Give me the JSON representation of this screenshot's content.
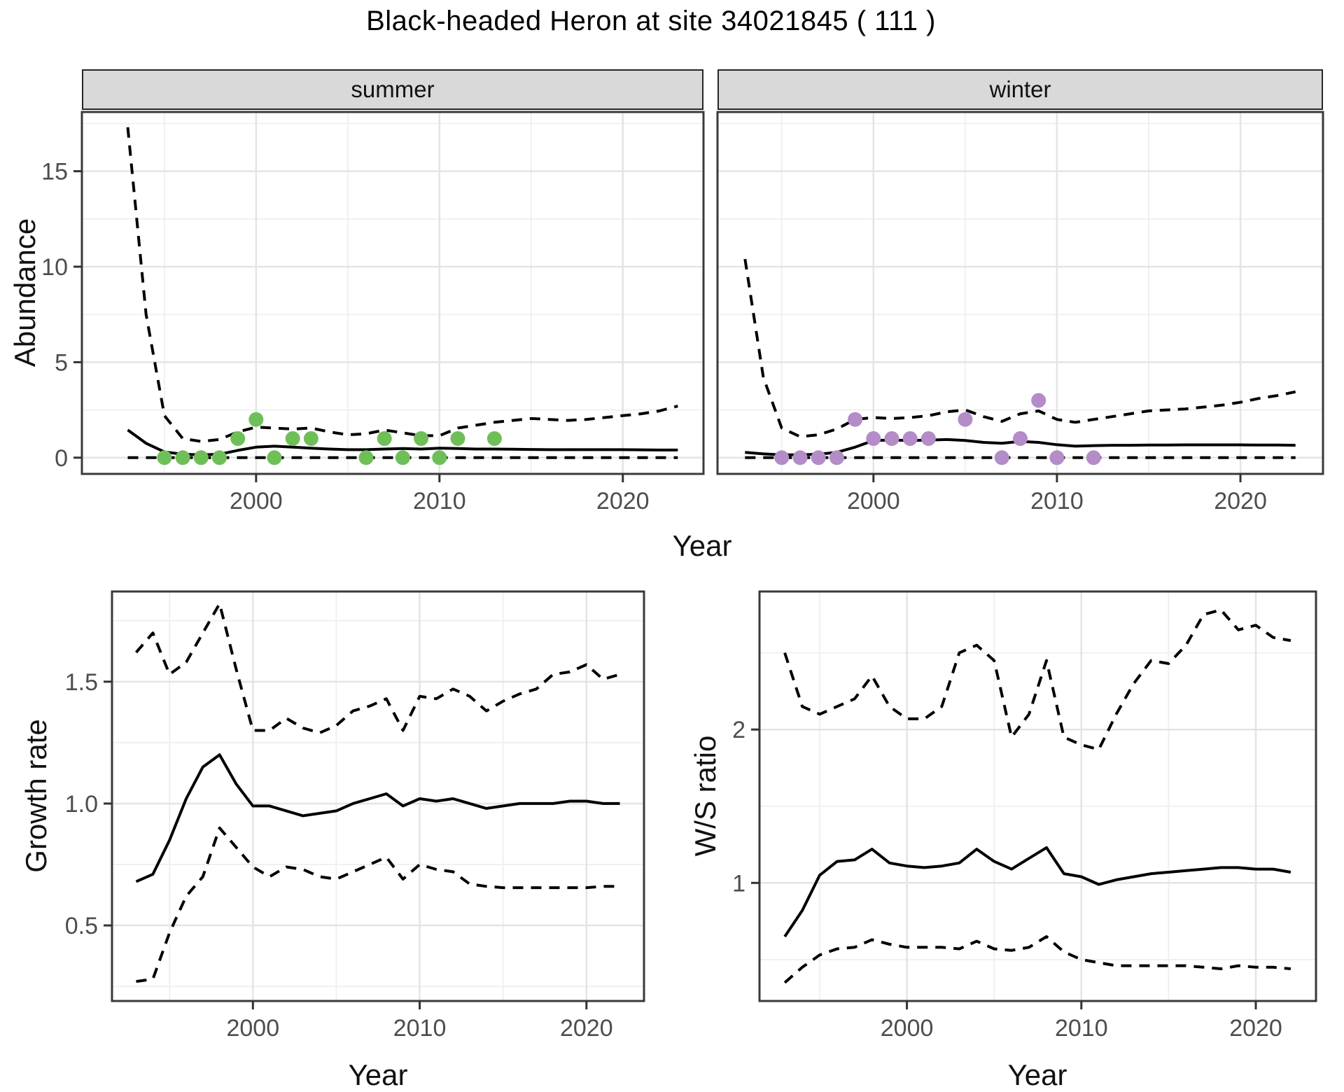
{
  "title": "Black-headed Heron at site 34021845 ( 111 )",
  "facets": {
    "summer": "summer",
    "winter": "winter"
  },
  "axis_titles": {
    "abundance": "Abundance",
    "growth": "Growth rate",
    "ws": "W/S ratio",
    "year": "Year"
  },
  "colors": {
    "summer_point": "#6FBF58",
    "winter_point": "#B48CC8",
    "line": "#000000",
    "grid_major": "#e4e4e4",
    "grid_minor": "#f0f0f0",
    "panel_border": "#3a3a3a",
    "tick_text": "#4d4d4d",
    "tick_mark": "#333333",
    "strip_bg": "#d9d9d9"
  },
  "chart_data": [
    {
      "id": "abundance-summer",
      "type": "line",
      "facet": "summer",
      "ylabel": "Abundance",
      "xlabel": "Year",
      "xlim": [
        1990.5,
        2024.4
      ],
      "ylim": [
        -0.85,
        18.1
      ],
      "xticks": [
        2000,
        2010,
        2020
      ],
      "xtick_labels": [
        "2000",
        "2010",
        "2020"
      ],
      "xminor": [
        1995,
        2005,
        2015
      ],
      "yticks": [
        0,
        5,
        10,
        15
      ],
      "ytick_labels": [
        "0",
        "5",
        "10",
        "15"
      ],
      "yminor": [
        2.5,
        7.5,
        12.5,
        17.5
      ],
      "x": [
        1993,
        1994,
        1995,
        1996,
        1997,
        1998,
        1999,
        2000,
        2001,
        2002,
        2003,
        2004,
        2005,
        2006,
        2007,
        2008,
        2009,
        2010,
        2011,
        2012,
        2013,
        2014,
        2015,
        2016,
        2017,
        2018,
        2019,
        2020,
        2021,
        2022,
        2023
      ],
      "series": [
        {
          "name": "median",
          "style": "solid",
          "values": [
            1.45,
            0.75,
            0.3,
            0.18,
            0.15,
            0.18,
            0.38,
            0.55,
            0.6,
            0.55,
            0.5,
            0.45,
            0.42,
            0.42,
            0.45,
            0.48,
            0.45,
            0.5,
            0.48,
            0.45,
            0.45,
            0.44,
            0.43,
            0.42,
            0.42,
            0.42,
            0.42,
            0.42,
            0.41,
            0.4,
            0.4
          ]
        },
        {
          "name": "upper_ci",
          "style": "dashed",
          "values": [
            17.3,
            7.5,
            2.2,
            1.0,
            0.85,
            0.95,
            1.35,
            1.6,
            1.55,
            1.5,
            1.55,
            1.35,
            1.2,
            1.25,
            1.45,
            1.3,
            1.15,
            1.15,
            1.55,
            1.7,
            1.85,
            1.95,
            2.05,
            2.0,
            1.95,
            2.0,
            2.1,
            2.2,
            2.3,
            2.45,
            2.7
          ]
        },
        {
          "name": "lower_ci",
          "style": "dashed",
          "values": [
            0,
            0,
            0,
            0,
            0,
            0,
            0,
            0,
            0,
            0,
            0,
            0,
            0,
            0,
            0,
            0,
            0,
            0,
            0,
            0,
            0,
            0,
            0,
            0,
            0,
            0,
            0,
            0,
            0,
            0,
            0
          ]
        }
      ],
      "points": {
        "name": "observed-counts-summer",
        "color": "#6FBF58",
        "x": [
          1995,
          1996,
          1997,
          1998,
          1999,
          2000,
          2001,
          2002,
          2003,
          2006,
          2007,
          2008,
          2009,
          2010,
          2011,
          2013
        ],
        "y": [
          0,
          0,
          0,
          0,
          1,
          2,
          0,
          1,
          1,
          0,
          1,
          0,
          1,
          0,
          1,
          1
        ]
      }
    },
    {
      "id": "abundance-winter",
      "type": "line",
      "facet": "winter",
      "ylabel": "Abundance",
      "xlabel": "Year",
      "xlim": [
        1991.5,
        2024.5
      ],
      "ylim": [
        -0.85,
        18.1
      ],
      "xticks": [
        2000,
        2010,
        2020
      ],
      "xtick_labels": [
        "2000",
        "2010",
        "2020"
      ],
      "xminor": [
        1995,
        2005,
        2015
      ],
      "yticks": [
        0,
        5,
        10,
        15
      ],
      "ytick_labels": [
        "0",
        "5",
        "10",
        "15"
      ],
      "yminor": [
        2.5,
        7.5,
        12.5,
        17.5
      ],
      "x": [
        1993,
        1994,
        1995,
        1996,
        1997,
        1998,
        1999,
        2000,
        2001,
        2002,
        2003,
        2004,
        2005,
        2006,
        2007,
        2008,
        2009,
        2010,
        2011,
        2012,
        2013,
        2014,
        2015,
        2016,
        2017,
        2018,
        2019,
        2020,
        2021,
        2022,
        2023
      ],
      "series": [
        {
          "name": "median",
          "style": "solid",
          "values": [
            0.28,
            0.2,
            0.15,
            0.15,
            0.18,
            0.28,
            0.55,
            0.9,
            0.92,
            0.9,
            0.92,
            0.95,
            0.9,
            0.8,
            0.75,
            0.85,
            0.8,
            0.68,
            0.6,
            0.63,
            0.65,
            0.65,
            0.66,
            0.66,
            0.67,
            0.67,
            0.67,
            0.67,
            0.66,
            0.66,
            0.65
          ]
        },
        {
          "name": "upper_ci",
          "style": "dashed",
          "values": [
            10.4,
            4.2,
            1.55,
            1.1,
            1.2,
            1.5,
            2.0,
            2.1,
            2.05,
            2.1,
            2.2,
            2.4,
            2.5,
            2.15,
            1.9,
            2.3,
            2.45,
            2.0,
            1.85,
            2.0,
            2.15,
            2.3,
            2.45,
            2.5,
            2.55,
            2.65,
            2.75,
            2.9,
            3.1,
            3.25,
            3.45
          ]
        },
        {
          "name": "lower_ci",
          "style": "dashed",
          "values": [
            0,
            0,
            0,
            0,
            0,
            0,
            0,
            0,
            0,
            0,
            0,
            0,
            0,
            0,
            0,
            0,
            0,
            0,
            0,
            0,
            0,
            0,
            0,
            0,
            0,
            0,
            0,
            0,
            0,
            0,
            0
          ]
        }
      ],
      "points": {
        "name": "observed-counts-winter",
        "color": "#B48CC8",
        "x": [
          1995,
          1996,
          1997,
          1998,
          1999,
          2000,
          2001,
          2002,
          2003,
          2005,
          2007,
          2008,
          2009,
          2010,
          2012
        ],
        "y": [
          0,
          0,
          0,
          0,
          2,
          1,
          1,
          1,
          1,
          2,
          0,
          1,
          3,
          0,
          0
        ]
      }
    },
    {
      "id": "growth-rate",
      "type": "line",
      "facet": null,
      "ylabel": "Growth rate",
      "xlabel": "Year",
      "xlim": [
        1991.55,
        2023.45
      ],
      "ylim": [
        0.19,
        1.87
      ],
      "xticks": [
        2000,
        2010,
        2020
      ],
      "xtick_labels": [
        "2000",
        "2010",
        "2020"
      ],
      "xminor": [
        1995,
        2005,
        2015
      ],
      "yticks": [
        0.5,
        1.0,
        1.5
      ],
      "ytick_labels": [
        "0.5",
        "1.0",
        "1.5"
      ],
      "yminor": [
        0.25,
        0.75,
        1.25,
        1.75
      ],
      "x": [
        1993,
        1994,
        1995,
        1996,
        1997,
        1998,
        1999,
        2000,
        2001,
        2002,
        2003,
        2004,
        2005,
        2006,
        2007,
        2008,
        2009,
        2010,
        2011,
        2012,
        2013,
        2014,
        2015,
        2016,
        2017,
        2018,
        2019,
        2020,
        2021,
        2022
      ],
      "series": [
        {
          "name": "median",
          "style": "solid",
          "values": [
            0.68,
            0.71,
            0.85,
            1.02,
            1.15,
            1.2,
            1.08,
            0.99,
            0.99,
            0.97,
            0.95,
            0.96,
            0.97,
            1.0,
            1.02,
            1.04,
            0.99,
            1.02,
            1.01,
            1.02,
            1.0,
            0.98,
            0.99,
            1.0,
            1.0,
            1.0,
            1.01,
            1.01,
            1.0,
            1.0
          ]
        },
        {
          "name": "upper_ci",
          "style": "dashed",
          "values": [
            1.62,
            1.7,
            1.53,
            1.58,
            1.7,
            1.82,
            1.55,
            1.3,
            1.3,
            1.35,
            1.31,
            1.29,
            1.32,
            1.38,
            1.4,
            1.43,
            1.3,
            1.44,
            1.43,
            1.47,
            1.44,
            1.38,
            1.42,
            1.45,
            1.47,
            1.53,
            1.54,
            1.57,
            1.51,
            1.53
          ]
        },
        {
          "name": "lower_ci",
          "style": "dashed",
          "values": [
            0.27,
            0.28,
            0.47,
            0.62,
            0.7,
            0.9,
            0.82,
            0.74,
            0.7,
            0.74,
            0.73,
            0.7,
            0.69,
            0.72,
            0.75,
            0.78,
            0.69,
            0.75,
            0.73,
            0.72,
            0.67,
            0.66,
            0.655,
            0.655,
            0.655,
            0.655,
            0.655,
            0.655,
            0.66,
            0.66
          ]
        }
      ],
      "points": null
    },
    {
      "id": "ws-ratio",
      "type": "line",
      "facet": null,
      "ylabel": "W/S ratio",
      "xlabel": "Year",
      "xlim": [
        1991.55,
        2023.45
      ],
      "ylim": [
        0.23,
        2.9
      ],
      "xticks": [
        2000,
        2010,
        2020
      ],
      "xtick_labels": [
        "2000",
        "2010",
        "2020"
      ],
      "xminor": [
        1995,
        2005,
        2015
      ],
      "yticks": [
        1,
        2
      ],
      "ytick_labels": [
        "1",
        "2"
      ],
      "yminor": [
        0.5,
        1.5,
        2.5
      ],
      "x": [
        1993,
        1994,
        1995,
        1996,
        1997,
        1998,
        1999,
        2000,
        2001,
        2002,
        2003,
        2004,
        2005,
        2006,
        2007,
        2008,
        2009,
        2010,
        2011,
        2012,
        2013,
        2014,
        2015,
        2016,
        2017,
        2018,
        2019,
        2020,
        2021,
        2022
      ],
      "series": [
        {
          "name": "median",
          "style": "solid",
          "values": [
            0.65,
            0.82,
            1.05,
            1.14,
            1.15,
            1.22,
            1.13,
            1.11,
            1.1,
            1.11,
            1.13,
            1.22,
            1.14,
            1.09,
            1.16,
            1.23,
            1.06,
            1.04,
            0.99,
            1.02,
            1.04,
            1.06,
            1.07,
            1.08,
            1.09,
            1.1,
            1.1,
            1.09,
            1.09,
            1.07
          ]
        },
        {
          "name": "upper_ci",
          "style": "dashed",
          "values": [
            2.5,
            2.15,
            2.1,
            2.15,
            2.2,
            2.35,
            2.15,
            2.07,
            2.07,
            2.15,
            2.5,
            2.55,
            2.45,
            1.95,
            2.1,
            2.45,
            1.95,
            1.9,
            1.87,
            2.1,
            2.3,
            2.45,
            2.43,
            2.55,
            2.75,
            2.78,
            2.65,
            2.68,
            2.6,
            2.58
          ]
        },
        {
          "name": "lower_ci",
          "style": "dashed",
          "values": [
            0.35,
            0.45,
            0.53,
            0.57,
            0.58,
            0.63,
            0.6,
            0.58,
            0.58,
            0.58,
            0.57,
            0.62,
            0.57,
            0.56,
            0.58,
            0.65,
            0.55,
            0.5,
            0.48,
            0.46,
            0.46,
            0.46,
            0.46,
            0.46,
            0.45,
            0.44,
            0.46,
            0.45,
            0.45,
            0.44
          ]
        }
      ],
      "points": null
    }
  ]
}
